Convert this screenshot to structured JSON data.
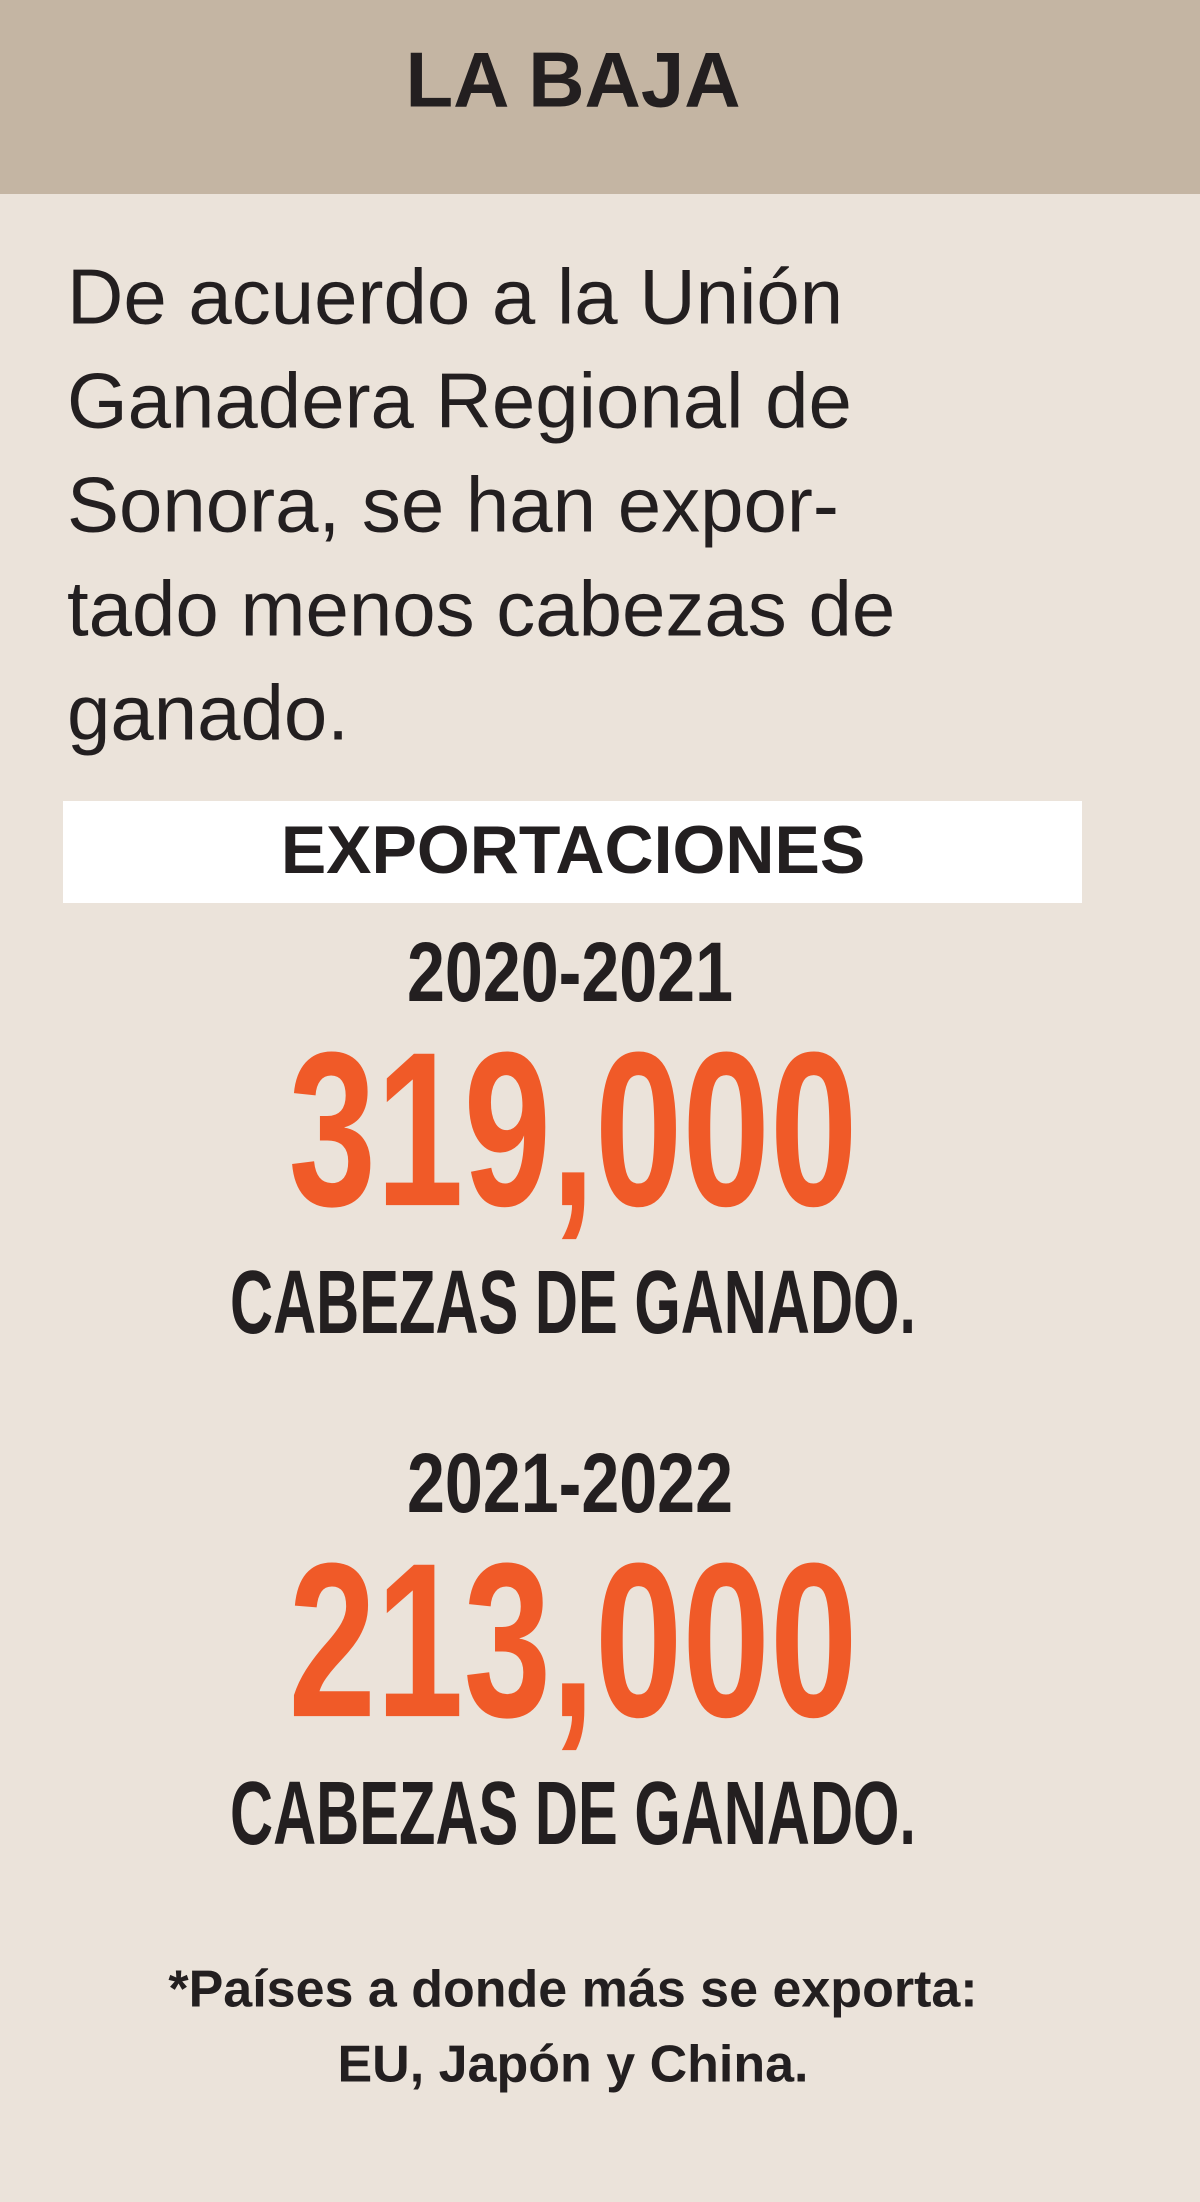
{
  "header": {
    "title": "LA BAJA"
  },
  "intro": {
    "lines": [
      "De acuerdo a la Unión",
      "Ganadera Regional de",
      "Sonora, se han expor-",
      "tado menos cabezas de",
      "ganado."
    ]
  },
  "section": {
    "title": "EXPORTACIONES",
    "periods": [
      {
        "period": "2020-2021",
        "value": "319,000",
        "unit": "CABEZAS DE GANADO."
      },
      {
        "period": "2021-2022",
        "value": "213,000",
        "unit": "CABEZAS DE GANADO."
      }
    ]
  },
  "footnote": {
    "lines": [
      "*Países a donde más se exporta:",
      "EU, Japón y China."
    ]
  }
}
